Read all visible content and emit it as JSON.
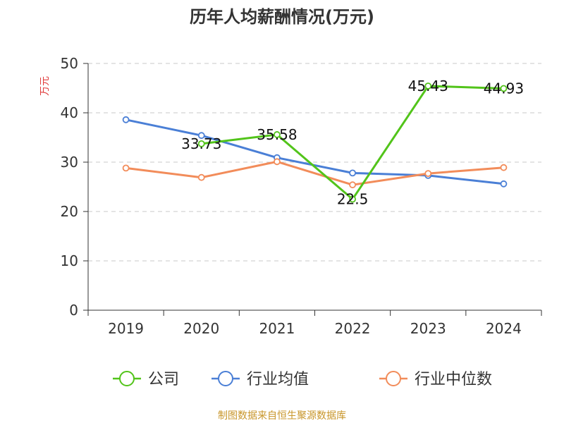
{
  "chart_data": {
    "type": "line",
    "title": "历年人均薪酬情况(万元)",
    "ylabel": "万元",
    "xlabel": "",
    "categories": [
      "2019",
      "2020",
      "2021",
      "2022",
      "2023",
      "2024"
    ],
    "ylim": [
      0,
      50
    ],
    "yticks": [
      0,
      10,
      20,
      30,
      40,
      50
    ],
    "grid": true,
    "legend_position": "bottom",
    "series": [
      {
        "name": "公司",
        "color": "#52c41a",
        "values": [
          null,
          33.73,
          35.58,
          22.5,
          45.43,
          44.93
        ],
        "labels": [
          "",
          "33.73",
          "35.58",
          "22.5",
          "45.43",
          "44.93"
        ]
      },
      {
        "name": "行业均值",
        "color": "#4a7fd6",
        "values": [
          38.6,
          35.4,
          30.9,
          27.8,
          27.3,
          25.6
        ]
      },
      {
        "name": "行业中位数",
        "color": "#f28c5a",
        "values": [
          28.8,
          26.9,
          30.1,
          25.4,
          27.7,
          28.9
        ]
      }
    ]
  },
  "source": "制图数据来自恒生聚源数据库"
}
